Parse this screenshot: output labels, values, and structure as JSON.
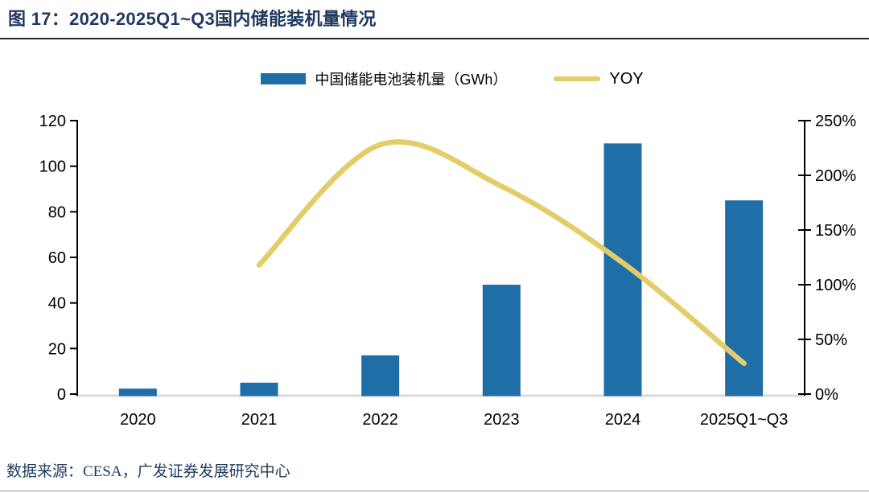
{
  "figure": {
    "title": "图 17：2020-2025Q1~Q3国内储能装机量情况",
    "source_note": "数据来源：CESA，广发证券发展研究中心"
  },
  "legend": {
    "bar_label": "中国储能电池装机量（GWh）",
    "line_label": "YOY"
  },
  "colors": {
    "bar": "#1F6EA8",
    "line": "#E4CC68",
    "title_text": "#1E3A5F",
    "axis_line": "#000000",
    "baseline": "#D9D9D9",
    "tick_text": "#000000"
  },
  "chart_data": {
    "type": "bar",
    "subtype": "combo-bar-line-dual-axis",
    "title": "2020-2025Q1~Q3国内储能装机量情况",
    "categories": [
      "2020",
      "2021",
      "2022",
      "2023",
      "2024",
      "2025Q1~Q3"
    ],
    "series": [
      {
        "name": "中国储能电池装机量（GWh）",
        "kind": "bar",
        "axis": "left",
        "values": [
          2.4,
          5,
          17,
          48,
          110,
          85
        ]
      },
      {
        "name": "YOY",
        "kind": "line",
        "axis": "right",
        "values_percent": [
          null,
          118,
          228,
          190,
          120,
          28
        ]
      }
    ],
    "left_axis": {
      "label": "",
      "min": 0,
      "max": 120,
      "tick_step": 20,
      "tick_labels": [
        "0",
        "20",
        "40",
        "60",
        "80",
        "100",
        "120"
      ]
    },
    "right_axis": {
      "label": "",
      "min_percent": 0,
      "max_percent": 250,
      "tick_step_percent": 50,
      "tick_labels": [
        "0%",
        "50%",
        "100%",
        "150%",
        "200%",
        "250%"
      ]
    },
    "x_tick_labels": [
      "2020",
      "2021",
      "2022",
      "2023",
      "2024",
      "2025Q1~Q3"
    ],
    "legend_position": "top",
    "grid": false,
    "line_smooth": true
  }
}
